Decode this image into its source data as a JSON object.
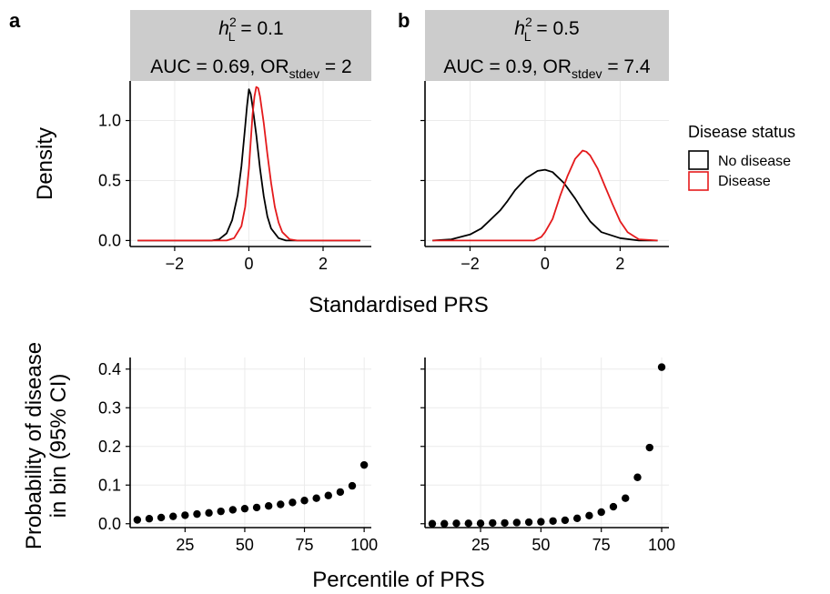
{
  "panel_labels": [
    "a",
    "b"
  ],
  "legend": {
    "title": "Disease status",
    "items": [
      {
        "label": "No disease",
        "color": "#000000"
      },
      {
        "label": "Disease",
        "color": "#e41a1c"
      }
    ]
  },
  "axis_titles": {
    "top_x": "Standardised PRS",
    "top_y": "Density",
    "bottom_x": "Percentile of PRS",
    "bottom_y_line1": "Probability of disease",
    "bottom_y_line2": "in bin (95% CI)"
  },
  "strips": [
    {
      "h2_base": "h",
      "h2_sup": "2",
      "h2_sub": "L",
      "h2_eq": " = 0.1",
      "auc_text": "AUC = 0.69, OR",
      "or_sub": "stdev",
      "or_eq": " = 2"
    },
    {
      "h2_base": "h",
      "h2_sup": "2",
      "h2_sub": "L",
      "h2_eq": " = 0.5",
      "auc_text": "AUC = 0.9, OR",
      "or_sub": "stdev",
      "or_eq": " = 7.4"
    }
  ],
  "chart_data": [
    {
      "type": "line",
      "panel": "a",
      "xlim": [
        -3.2,
        3.3
      ],
      "ylim": [
        -0.05,
        1.33
      ],
      "x_ticks": [
        -2,
        0,
        2
      ],
      "x_tick_labels": [
        "−2",
        "0",
        "2"
      ],
      "y_ticks": [
        0.0,
        0.5,
        1.0
      ],
      "y_tick_labels": [
        "0.0",
        "0.5",
        "1.0"
      ],
      "grid": true,
      "series": [
        {
          "name": "No disease",
          "color": "#000000",
          "x": [
            -3.0,
            -1.0,
            -0.8,
            -0.6,
            -0.45,
            -0.3,
            -0.2,
            -0.1,
            -0.05,
            0.0,
            0.05,
            0.1,
            0.2,
            0.3,
            0.4,
            0.5,
            0.6,
            0.8,
            1.0,
            3.0
          ],
          "y": [
            0.0,
            0.0,
            0.01,
            0.06,
            0.17,
            0.38,
            0.62,
            0.95,
            1.12,
            1.26,
            1.22,
            1.12,
            0.88,
            0.6,
            0.37,
            0.2,
            0.1,
            0.02,
            0.0,
            0.0
          ]
        },
        {
          "name": "Disease",
          "color": "#e41a1c",
          "x": [
            -3.0,
            -0.6,
            -0.4,
            -0.2,
            -0.1,
            0.0,
            0.1,
            0.15,
            0.2,
            0.25,
            0.3,
            0.4,
            0.5,
            0.6,
            0.7,
            0.8,
            0.9,
            1.1,
            1.3,
            3.0
          ],
          "y": [
            0.0,
            0.0,
            0.02,
            0.12,
            0.28,
            0.6,
            1.05,
            1.2,
            1.28,
            1.27,
            1.2,
            0.98,
            0.72,
            0.48,
            0.28,
            0.15,
            0.07,
            0.01,
            0.0,
            0.0
          ]
        }
      ]
    },
    {
      "type": "line",
      "panel": "b",
      "xlim": [
        -3.2,
        3.3
      ],
      "ylim": [
        -0.05,
        1.33
      ],
      "x_ticks": [
        -2,
        0,
        2
      ],
      "x_tick_labels": [
        "−2",
        "0",
        "2"
      ],
      "y_ticks": [
        0.0,
        0.5,
        1.0
      ],
      "grid": true,
      "series": [
        {
          "name": "No disease",
          "color": "#000000",
          "x": [
            -3.0,
            -2.5,
            -2.0,
            -1.7,
            -1.5,
            -1.2,
            -1.0,
            -0.8,
            -0.5,
            -0.2,
            0.0,
            0.2,
            0.5,
            0.8,
            1.0,
            1.2,
            1.5,
            2.0,
            2.5,
            3.0
          ],
          "y": [
            0.0,
            0.01,
            0.05,
            0.1,
            0.16,
            0.25,
            0.33,
            0.42,
            0.52,
            0.58,
            0.59,
            0.57,
            0.48,
            0.35,
            0.25,
            0.16,
            0.07,
            0.02,
            0.0,
            0.0
          ]
        },
        {
          "name": "Disease",
          "color": "#e41a1c",
          "x": [
            -3.0,
            -0.3,
            -0.1,
            0.0,
            0.2,
            0.4,
            0.6,
            0.8,
            1.0,
            1.1,
            1.2,
            1.4,
            1.6,
            1.8,
            2.0,
            2.2,
            2.5,
            3.0
          ],
          "y": [
            0.0,
            0.0,
            0.03,
            0.07,
            0.18,
            0.37,
            0.54,
            0.68,
            0.75,
            0.74,
            0.71,
            0.6,
            0.45,
            0.3,
            0.16,
            0.07,
            0.01,
            0.0
          ]
        }
      ]
    },
    {
      "type": "scatter",
      "panel": "a",
      "xlim": [
        2,
        103
      ],
      "ylim": [
        -0.01,
        0.43
      ],
      "x_ticks": [
        25,
        50,
        75,
        100
      ],
      "x_tick_labels": [
        "25",
        "50",
        "75",
        "100"
      ],
      "y_ticks": [
        0.0,
        0.1,
        0.2,
        0.3,
        0.4
      ],
      "y_tick_labels": [
        "0.0",
        "0.1",
        "0.2",
        "0.3",
        "0.4"
      ],
      "grid": true,
      "x": [
        5,
        10,
        15,
        20,
        25,
        30,
        35,
        40,
        45,
        50,
        55,
        60,
        65,
        70,
        75,
        80,
        85,
        90,
        95,
        100
      ],
      "y": [
        0.01,
        0.013,
        0.016,
        0.019,
        0.022,
        0.025,
        0.028,
        0.032,
        0.036,
        0.039,
        0.042,
        0.046,
        0.05,
        0.055,
        0.06,
        0.066,
        0.073,
        0.082,
        0.098,
        0.152
      ]
    },
    {
      "type": "scatter",
      "panel": "b",
      "xlim": [
        2,
        103
      ],
      "ylim": [
        -0.01,
        0.43
      ],
      "x_ticks": [
        25,
        50,
        75,
        100
      ],
      "x_tick_labels": [
        "25",
        "50",
        "75",
        "100"
      ],
      "y_ticks": [
        0.0,
        0.1,
        0.2,
        0.3,
        0.4
      ],
      "grid": true,
      "x": [
        5,
        10,
        15,
        20,
        25,
        30,
        35,
        40,
        45,
        50,
        55,
        60,
        65,
        70,
        75,
        80,
        85,
        90,
        95,
        100
      ],
      "y": [
        0.0,
        0.0,
        0.001,
        0.001,
        0.001,
        0.002,
        0.002,
        0.003,
        0.004,
        0.005,
        0.007,
        0.009,
        0.014,
        0.021,
        0.03,
        0.044,
        0.066,
        0.12,
        0.197,
        0.405
      ]
    }
  ]
}
